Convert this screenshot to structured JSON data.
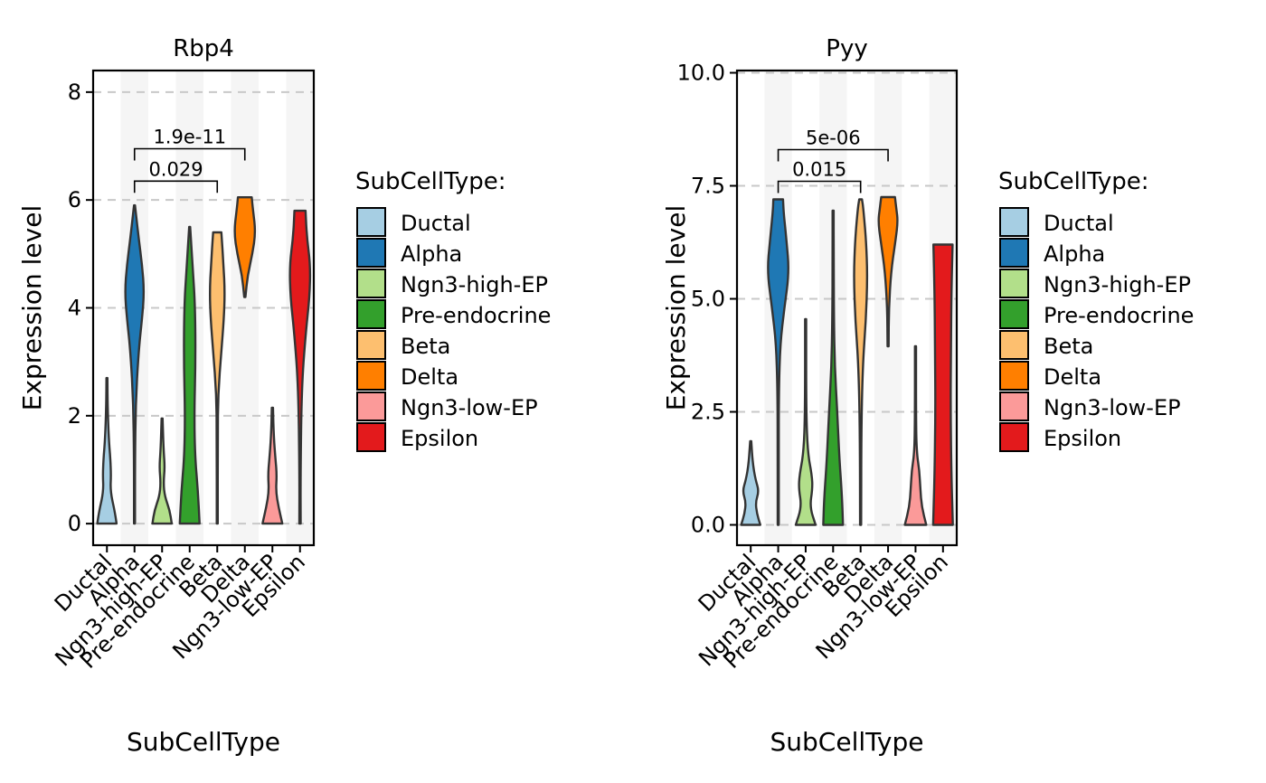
{
  "colors": {
    "Ductal": "#A6CEE3",
    "Alpha": "#1F78B4",
    "Ngn3-high-EP": "#B2DF8A",
    "Pre-endocrine": "#33A02C",
    "Beta": "#FDBF6F",
    "Delta": "#FF7F00",
    "Ngn3-low-EP": "#FB9A99",
    "Epsilon": "#E31A1C"
  },
  "chart_data": [
    {
      "type": "violin",
      "title": "Rbp4",
      "xlabel": "SubCellType",
      "ylabel": "Expression level",
      "ylim": [
        -0.4,
        8.4
      ],
      "yticks": [
        0,
        2,
        4,
        6,
        8
      ],
      "ytick_labels": [
        "0",
        "2",
        "4",
        "6",
        "8"
      ],
      "categories": [
        "Ductal",
        "Alpha",
        "Ngn3-high-EP",
        "Pre-endocrine",
        "Beta",
        "Delta",
        "Ngn3-low-EP",
        "Epsilon"
      ],
      "grid": "horizontal-dashed",
      "series": [
        {
          "category": "Ductal",
          "min": 0,
          "max": 2.7,
          "profile": [
            [
              0,
              0.7
            ],
            [
              0.25,
              0.55
            ],
            [
              0.6,
              0.25
            ],
            [
              0.9,
              0.3
            ],
            [
              1.2,
              0.25
            ],
            [
              1.6,
              0.13
            ],
            [
              2.2,
              0.05
            ],
            [
              2.7,
              0.01
            ]
          ]
        },
        {
          "category": "Alpha",
          "min": 0,
          "max": 5.9,
          "profile": [
            [
              0,
              0.02
            ],
            [
              1.2,
              0.03
            ],
            [
              2.2,
              0.08
            ],
            [
              3.2,
              0.3
            ],
            [
              3.8,
              0.55
            ],
            [
              4.3,
              0.7
            ],
            [
              4.8,
              0.55
            ],
            [
              5.3,
              0.3
            ],
            [
              5.9,
              0.01
            ]
          ]
        },
        {
          "category": "Ngn3-high-EP",
          "min": 0,
          "max": 1.95,
          "profile": [
            [
              0,
              0.7
            ],
            [
              0.25,
              0.55
            ],
            [
              0.5,
              0.2
            ],
            [
              0.75,
              0.1
            ],
            [
              1.05,
              0.2
            ],
            [
              1.4,
              0.1
            ],
            [
              1.95,
              0.01
            ]
          ]
        },
        {
          "category": "Pre-endocrine",
          "min": 0,
          "max": 5.5,
          "profile": [
            [
              0,
              0.72
            ],
            [
              0.6,
              0.6
            ],
            [
              1.2,
              0.4
            ],
            [
              2.0,
              0.33
            ],
            [
              3.0,
              0.42
            ],
            [
              4.0,
              0.4
            ],
            [
              4.7,
              0.23
            ],
            [
              5.5,
              0.01
            ]
          ]
        },
        {
          "category": "Beta",
          "min": 0,
          "max": 5.4,
          "profile": [
            [
              0,
              0.02
            ],
            [
              1.6,
              0.03
            ],
            [
              2.4,
              0.06
            ],
            [
              3.2,
              0.3
            ],
            [
              3.8,
              0.48
            ],
            [
              4.3,
              0.55
            ],
            [
              4.8,
              0.45
            ],
            [
              5.4,
              0.3
            ]
          ]
        },
        {
          "category": "Delta",
          "min": 4.2,
          "max": 6.05,
          "profile": [
            [
              4.2,
              0.02
            ],
            [
              4.6,
              0.2
            ],
            [
              5.0,
              0.55
            ],
            [
              5.4,
              0.78
            ],
            [
              5.8,
              0.6
            ],
            [
              6.05,
              0.5
            ]
          ]
        },
        {
          "category": "Ngn3-low-EP",
          "min": 0,
          "max": 2.15,
          "profile": [
            [
              0,
              0.72
            ],
            [
              0.3,
              0.45
            ],
            [
              0.6,
              0.25
            ],
            [
              0.9,
              0.32
            ],
            [
              1.2,
              0.22
            ],
            [
              1.6,
              0.1
            ],
            [
              2.15,
              0.01
            ]
          ]
        },
        {
          "category": "Epsilon",
          "min": 0,
          "max": 5.8,
          "profile": [
            [
              0,
              0.05
            ],
            [
              1.0,
              0.04
            ],
            [
              2.5,
              0.12
            ],
            [
              3.5,
              0.4
            ],
            [
              4.2,
              0.7
            ],
            [
              4.8,
              0.75
            ],
            [
              5.3,
              0.5
            ],
            [
              5.8,
              0.4
            ]
          ]
        }
      ],
      "comparisons": [
        {
          "from": "Alpha",
          "to": "Beta",
          "label": "0.029",
          "y": 6.35
        },
        {
          "from": "Alpha",
          "to": "Delta",
          "label": "1.9e-11",
          "y": 6.95
        }
      ]
    },
    {
      "type": "violin",
      "title": "Pyy",
      "xlabel": "SubCellType",
      "ylabel": "Expression level",
      "ylim": [
        -0.45,
        10.05
      ],
      "yticks": [
        0,
        2.5,
        5,
        7.5,
        10
      ],
      "ytick_labels": [
        "0.0",
        "2.5",
        "5.0",
        "7.5",
        "10.0"
      ],
      "categories": [
        "Ductal",
        "Alpha",
        "Ngn3-high-EP",
        "Pre-endocrine",
        "Beta",
        "Delta",
        "Ngn3-low-EP",
        "Epsilon"
      ],
      "grid": "horizontal-dashed",
      "series": [
        {
          "category": "Ductal",
          "min": 0,
          "max": 1.85,
          "profile": [
            [
              0,
              0.7
            ],
            [
              0.25,
              0.45
            ],
            [
              0.5,
              0.35
            ],
            [
              0.75,
              0.6
            ],
            [
              1.0,
              0.35
            ],
            [
              1.35,
              0.15
            ],
            [
              1.85,
              0.01
            ]
          ]
        },
        {
          "category": "Alpha",
          "min": 0,
          "max": 7.2,
          "profile": [
            [
              0,
              0.02
            ],
            [
              1.5,
              0.03
            ],
            [
              3.0,
              0.05
            ],
            [
              4.0,
              0.15
            ],
            [
              4.8,
              0.45
            ],
            [
              5.6,
              0.8
            ],
            [
              6.3,
              0.6
            ],
            [
              6.9,
              0.4
            ],
            [
              7.2,
              0.35
            ]
          ]
        },
        {
          "category": "Ngn3-high-EP",
          "min": 0,
          "max": 4.55,
          "profile": [
            [
              0,
              0.72
            ],
            [
              0.4,
              0.3
            ],
            [
              0.8,
              0.5
            ],
            [
              1.1,
              0.45
            ],
            [
              1.6,
              0.15
            ],
            [
              2.5,
              0.04
            ],
            [
              4.55,
              0.01
            ]
          ]
        },
        {
          "category": "Pre-endocrine",
          "min": 0,
          "max": 6.95,
          "profile": [
            [
              0,
              0.72
            ],
            [
              0.6,
              0.65
            ],
            [
              1.5,
              0.45
            ],
            [
              2.5,
              0.3
            ],
            [
              3.5,
              0.12
            ],
            [
              4.5,
              0.06
            ],
            [
              6.0,
              0.04
            ],
            [
              6.95,
              0.02
            ]
          ]
        },
        {
          "category": "Beta",
          "min": 0,
          "max": 7.2,
          "profile": [
            [
              0,
              0.02
            ],
            [
              2.0,
              0.05
            ],
            [
              3.5,
              0.15
            ],
            [
              4.5,
              0.38
            ],
            [
              5.5,
              0.5
            ],
            [
              6.3,
              0.4
            ],
            [
              7.0,
              0.2
            ],
            [
              7.2,
              0.1
            ]
          ]
        },
        {
          "category": "Delta",
          "min": 3.95,
          "max": 7.25,
          "profile": [
            [
              3.95,
              0.02
            ],
            [
              4.8,
              0.06
            ],
            [
              5.6,
              0.22
            ],
            [
              6.2,
              0.5
            ],
            [
              6.7,
              0.72
            ],
            [
              7.0,
              0.6
            ],
            [
              7.25,
              0.5
            ]
          ]
        },
        {
          "category": "Ngn3-low-EP",
          "min": 0,
          "max": 3.95,
          "profile": [
            [
              0,
              0.78
            ],
            [
              0.4,
              0.45
            ],
            [
              0.8,
              0.35
            ],
            [
              1.2,
              0.28
            ],
            [
              1.6,
              0.08
            ],
            [
              2.4,
              0.03
            ],
            [
              3.95,
              0.01
            ]
          ]
        },
        {
          "category": "Epsilon",
          "min": 0,
          "max": 6.2,
          "profile": [
            [
              0,
              0.72
            ],
            [
              1.0,
              0.62
            ],
            [
              2.5,
              0.55
            ],
            [
              4.0,
              0.58
            ],
            [
              5.2,
              0.62
            ],
            [
              6.2,
              0.7
            ]
          ]
        }
      ],
      "comparisons": [
        {
          "from": "Alpha",
          "to": "Beta",
          "label": "0.015",
          "y": 7.6
        },
        {
          "from": "Alpha",
          "to": "Delta",
          "label": "5e-06",
          "y": 8.3
        }
      ]
    }
  ],
  "legend": {
    "title": "SubCellType:",
    "items": [
      "Ductal",
      "Alpha",
      "Ngn3-high-EP",
      "Pre-endocrine",
      "Beta",
      "Delta",
      "Ngn3-low-EP",
      "Epsilon"
    ]
  }
}
